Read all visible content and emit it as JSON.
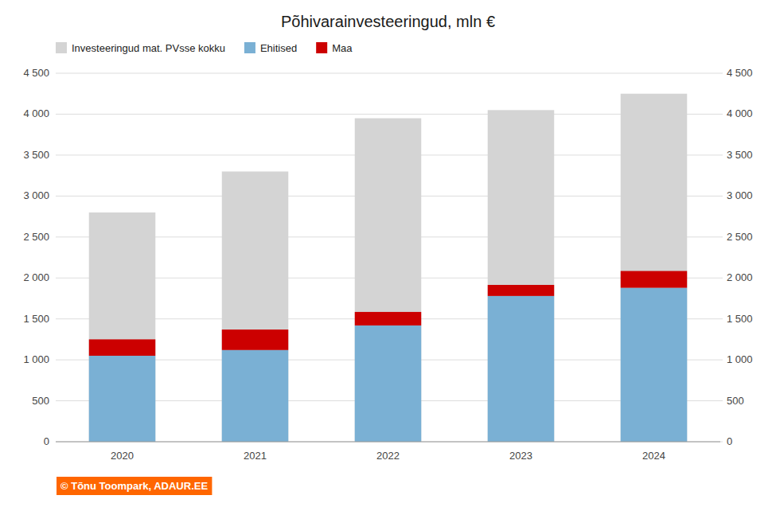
{
  "chart_data": {
    "type": "bar",
    "title": "Põhivarainvesteeringud, mln €",
    "categories": [
      "2020",
      "2021",
      "2022",
      "2023",
      "2024"
    ],
    "series": [
      {
        "name": "Investeeringud mat. PVsse kokku",
        "type": "bar",
        "color": "#d4d4d4",
        "values": [
          2800,
          3300,
          3950,
          4050,
          4250
        ]
      },
      {
        "name": "Ehitised",
        "type": "stacked_bar",
        "color": "#7ab0d4",
        "values": [
          1050,
          1120,
          1420,
          1780,
          1880
        ]
      },
      {
        "name": "Maa",
        "type": "stacked_bar",
        "color": "#cc0000",
        "values": [
          200,
          250,
          165,
          135,
          205
        ]
      }
    ],
    "ylim": [
      0,
      4500
    ],
    "yticks": [
      0,
      500,
      {
        "value": 1000,
        "label": "1 000"
      },
      {
        "value": 1500,
        "label": "1 500"
      },
      {
        "value": 2000,
        "label": "2 000"
      },
      {
        "value": 2500,
        "label": "2 500"
      },
      {
        "value": 3000,
        "label": "3 000"
      },
      {
        "value": 3500,
        "label": "3 500"
      },
      {
        "value": 4000,
        "label": "4 000"
      },
      {
        "value": 4500,
        "label": "4 500"
      }
    ],
    "y2lim": [
      0,
      4500
    ],
    "y2ticks": [
      0,
      500,
      {
        "value": 1000,
        "label": "1 000"
      },
      {
        "value": 1500,
        "label": "1 500"
      },
      {
        "value": 2000,
        "label": "2 000"
      },
      {
        "value": 2500,
        "label": "2 500"
      },
      {
        "value": 3000,
        "label": "3 000"
      },
      {
        "value": 3500,
        "label": "3 500"
      },
      {
        "value": 4000,
        "label": "4 000"
      },
      {
        "value": 4500,
        "label": "4 500"
      }
    ],
    "grid": true,
    "legend": "upper left",
    "annotations": [
      "© Tõnu Toompark, ADAUR.EE"
    ]
  }
}
